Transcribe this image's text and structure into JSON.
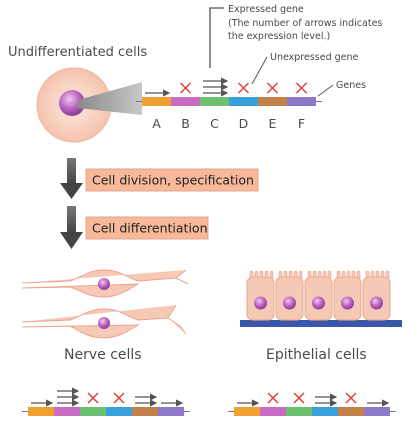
{
  "labels": {
    "undiff": "Undifferentiated cells",
    "expressed": "Expressed gene",
    "expressed_note1": "(The number of arrows indicates",
    "expressed_note2": "the expression level.)",
    "unexpressed": "Unexpressed gene",
    "genes": "Genes",
    "nerve": "Nerve cells",
    "epithelial": "Epithelial cells"
  },
  "steps": [
    "Cell division, specification",
    "Cell differentiation"
  ],
  "gene_letters": [
    "A",
    "B",
    "C",
    "D",
    "E",
    "F"
  ],
  "colors": {
    "gene_segments": [
      "#f0a030",
      "#c86cc4",
      "#6cc070",
      "#3aa0dc",
      "#c08048",
      "#8c7ac8"
    ],
    "box_fill": "#f7b99a",
    "cross": "#e0413c",
    "arrow": "#555555",
    "cell": "#f6c9b6",
    "nucleus": "#b86ac0"
  },
  "gene_states": {
    "top": [
      1,
      0,
      3,
      0,
      0,
      0
    ],
    "nerve": [
      1,
      3,
      0,
      0,
      2,
      1
    ],
    "epithelial": [
      1,
      0,
      0,
      2,
      0,
      1
    ]
  }
}
